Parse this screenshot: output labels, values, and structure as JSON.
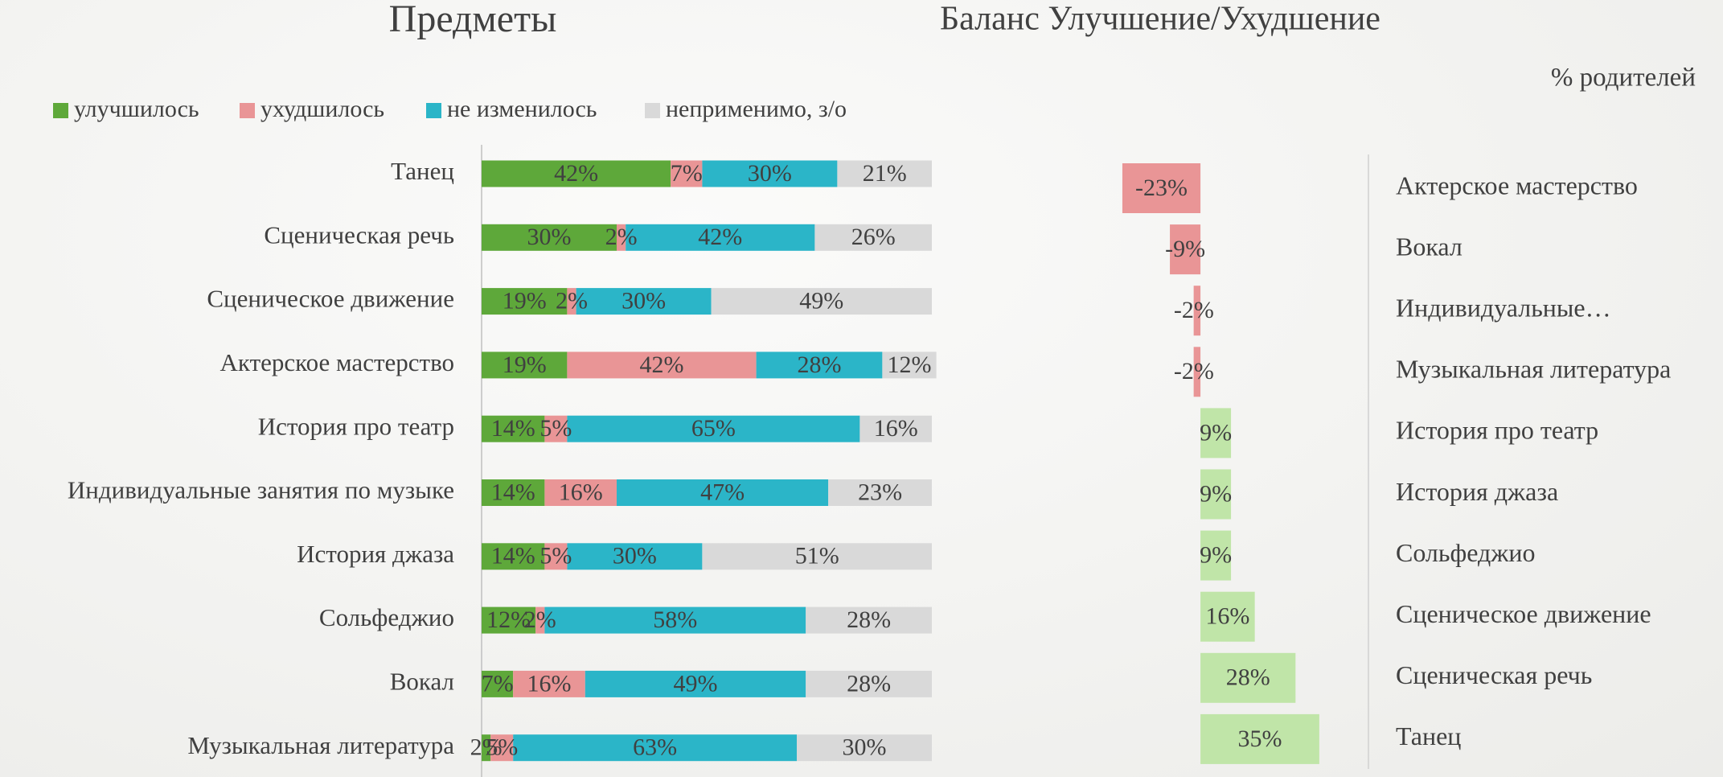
{
  "chart_data": [
    {
      "type": "stacked-bar",
      "title": "Предметы",
      "categories": [
        "Танец",
        "Сценическая речь",
        "Сценическое движение",
        "Актерское мастерство",
        "История про театр",
        "Индивидуальные занятия по музыке",
        "История джаза",
        "Сольфеджио",
        "Вокал",
        "Музыкальная литература"
      ],
      "series": [
        {
          "name": "улучшилось",
          "color": "#5ea83a",
          "values": [
            42,
            30,
            19,
            19,
            14,
            14,
            14,
            12,
            7,
            2
          ],
          "value_labels": [
            "42%",
            "30%",
            "19%",
            "19%",
            "14%",
            "14%",
            "14%",
            "12%",
            "7%",
            "2%"
          ]
        },
        {
          "name": "ухудшилось",
          "color": "#e99596",
          "values": [
            7,
            2,
            2,
            42,
            5,
            16,
            5,
            2,
            16,
            5
          ],
          "value_labels": [
            "7%",
            "2%",
            "2%",
            "42%",
            "5%",
            "16%",
            "5%",
            "2%",
            "16%",
            "5%"
          ]
        },
        {
          "name": "не изменилось",
          "color": "#2bb5c8",
          "values": [
            30,
            42,
            30,
            28,
            65,
            47,
            30,
            58,
            49,
            63
          ],
          "value_labels": [
            "30%",
            "42%",
            "30%",
            "28%",
            "65%",
            "47%",
            "30%",
            "58%",
            "49%",
            "63%"
          ]
        },
        {
          "name": "неприменимо, з/о",
          "color": "#d9d9d9",
          "values": [
            21,
            26,
            49,
            12,
            16,
            23,
            51,
            28,
            28,
            30
          ],
          "value_labels": [
            "21%",
            "26%",
            "49%",
            "12%",
            "16%",
            "23%",
            "51%",
            "28%",
            "28%",
            "30%"
          ]
        }
      ],
      "xlim": [
        0,
        100
      ]
    },
    {
      "type": "diverging-bar",
      "title": "Баланс Улучшение/Ухудшение",
      "subtitle": "% родителей",
      "categories": [
        "Актерское мастерство",
        "Вокал",
        "Индивидуальные…",
        "Музыкальная литература",
        "История про театр",
        "История джаза",
        "Сольфеджио",
        "Сценическое движение",
        "Сценическая речь",
        "Танец"
      ],
      "values": [
        -23,
        -9,
        -2,
        -2,
        9,
        9,
        9,
        16,
        28,
        35
      ],
      "value_labels": [
        "-23%",
        "-9%",
        "-2%",
        "-2%",
        "9%",
        "9%",
        "9%",
        "16%",
        "28%",
        "35%"
      ],
      "negative_color": "#e99596",
      "positive_color": "#c0e5a8",
      "xlim": [
        -25,
        40
      ]
    }
  ]
}
